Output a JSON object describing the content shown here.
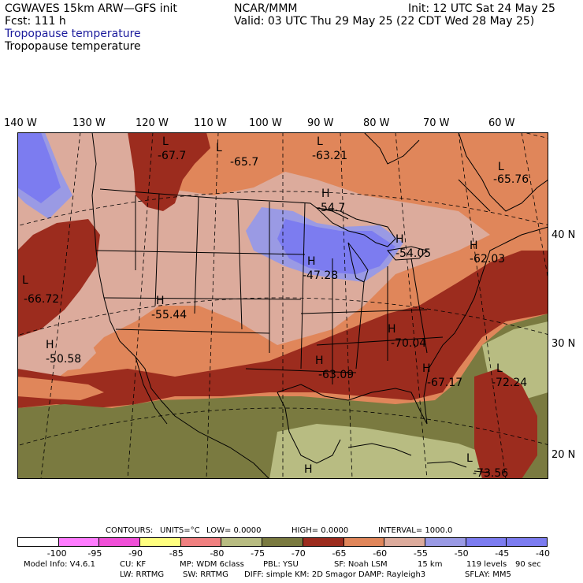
{
  "header": {
    "model": "CGWAVES 15km ARW—GFS init",
    "fcst": "Fcst:  111 h",
    "org": "NCAR/MMM",
    "init": "Init: 12 UTC Sat 24 May 25",
    "valid": "Valid: 03 UTC Thu 29 May 25 (22 CDT Wed 28 May 25)",
    "field1": "Tropopause temperature",
    "field2": "Tropopause temperature"
  },
  "colors": {
    "bg_default": "#e0865a",
    "pale_pink": "#dcab9c",
    "dark_red": "#9c2c1e",
    "mid_red": "#c45a3a",
    "lavender": "#9a9ae4",
    "blue": "#7c7cf0",
    "olive": "#7a7a40",
    "khaki": "#b8bc82",
    "boundary": "#000000",
    "grid": "#000000"
  },
  "longitudes": [
    "140 W",
    "130 W",
    "120 W",
    "110 W",
    "100 W",
    "90 W",
    "80 W",
    "70 W",
    "60 W"
  ],
  "latitudes": [
    "40 N",
    "30 N",
    "20 N"
  ],
  "extrema": [
    {
      "type": "L",
      "value": "-67.7"
    },
    {
      "type": "L",
      "value": "-65.7"
    },
    {
      "type": "L",
      "value": "-63.21"
    },
    {
      "type": "L",
      "value": "-65.76"
    },
    {
      "type": "H",
      "value": "-54.7"
    },
    {
      "type": "H",
      "value": "-54.05"
    },
    {
      "type": "H",
      "value": "-62.03"
    },
    {
      "type": "H",
      "value": "-47.28"
    },
    {
      "type": "L",
      "value": "-66.72"
    },
    {
      "type": "H",
      "value": "-55.44"
    },
    {
      "type": "H",
      "value": "-50.58"
    },
    {
      "type": "H",
      "value": "-70.04"
    },
    {
      "type": "H",
      "value": "-63.09"
    },
    {
      "type": "H",
      "value": "-67.17"
    },
    {
      "type": "L",
      "value": "-72.24"
    },
    {
      "type": "H",
      "value": ""
    },
    {
      "type": "L",
      "value": "-73.56"
    }
  ],
  "contours_line": {
    "label": "CONTOURS:",
    "units": "UNITS=°C",
    "low": "LOW=  0.0000",
    "high": "HIGH=  0.0000",
    "interval": "INTERVAL=   1000.0"
  },
  "legend": {
    "labels": [
      "-100",
      "-95",
      "-90",
      "-85",
      "-80",
      "-75",
      "-70",
      "-65",
      "-60",
      "-55",
      "-50",
      "-45",
      "-40",
      "°C"
    ],
    "colors": [
      "#ffffff",
      "#ff7cff",
      "#f050d8",
      "#ffff80",
      "#f08080",
      "#b8bc82",
      "#7a7a40",
      "#9c2c1e",
      "#e0865a",
      "#dcab9c",
      "#9a9ae4",
      "#7c7cf0",
      "#7c7cf0"
    ]
  },
  "model_info": {
    "line1_a": "Model Info: V4.6.1",
    "line1_b": "CU: KF",
    "line1_c": "MP: WDM 6class",
    "line1_d": "PBL: YSU",
    "line1_e": "SF: Noah LSM",
    "line1_f": "15 km",
    "line1_g": "119 levels",
    "line1_h": "90 sec",
    "line2_a": "LW: RRTMG",
    "line2_b": "SW: RRTMG",
    "line2_c": "DIFF: simple KM: 2D Smagor DAMP: Rayleigh3",
    "line2_d": "SFLAY: MM5"
  }
}
